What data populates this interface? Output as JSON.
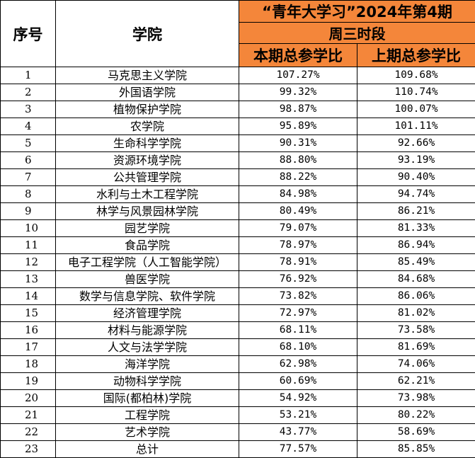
{
  "header": {
    "col_index": "序号",
    "col_college": "学院",
    "period_title": "“青年大学习”2024年第4期",
    "period_sub": "周三时段",
    "col_current": "本期总参学比",
    "col_previous": "上期总参学比"
  },
  "colors": {
    "header_orange": "#F4863A",
    "border": "#000000"
  },
  "rows": [
    {
      "no": "1",
      "college": "马克思主义学院",
      "current": "107.27%",
      "previous": "109.68%"
    },
    {
      "no": "2",
      "college": "外国语学院",
      "current": "99.32%",
      "previous": "110.74%"
    },
    {
      "no": "3",
      "college": "植物保护学院",
      "current": "98.87%",
      "previous": "100.07%"
    },
    {
      "no": "4",
      "college": "农学院",
      "current": "95.89%",
      "previous": "101.11%"
    },
    {
      "no": "5",
      "college": "生命科学学院",
      "current": "90.31%",
      "previous": "92.66%"
    },
    {
      "no": "6",
      "college": "资源环境学院",
      "current": "88.80%",
      "previous": "93.19%"
    },
    {
      "no": "7",
      "college": "公共管理学院",
      "current": "88.22%",
      "previous": "90.40%"
    },
    {
      "no": "8",
      "college": "水利与土木工程学院",
      "current": "84.98%",
      "previous": "94.74%"
    },
    {
      "no": "9",
      "college": "林学与风景园林学院",
      "current": "80.49%",
      "previous": "86.21%"
    },
    {
      "no": "10",
      "college": "园艺学院",
      "current": "79.07%",
      "previous": "81.33%"
    },
    {
      "no": "11",
      "college": "食品学院",
      "current": "78.97%",
      "previous": "86.94%"
    },
    {
      "no": "12",
      "college": "电子工程学院（人工智能学院）",
      "current": "78.91%",
      "previous": "85.49%"
    },
    {
      "no": "13",
      "college": "兽医学院",
      "current": "76.92%",
      "previous": "84.68%"
    },
    {
      "no": "14",
      "college": "数学与信息学院、软件学院",
      "current": "73.82%",
      "previous": "86.06%"
    },
    {
      "no": "15",
      "college": "经济管理学院",
      "current": "72.97%",
      "previous": "81.02%"
    },
    {
      "no": "16",
      "college": "材料与能源学院",
      "current": "68.11%",
      "previous": "73.58%"
    },
    {
      "no": "17",
      "college": "人文与法学学院",
      "current": "68.10%",
      "previous": "81.69%"
    },
    {
      "no": "18",
      "college": "海洋学院",
      "current": "62.98%",
      "previous": "74.06%"
    },
    {
      "no": "19",
      "college": "动物科学学院",
      "current": "60.69%",
      "previous": "62.21%"
    },
    {
      "no": "20",
      "college": "国际(都柏林)学院",
      "current": "54.92%",
      "previous": "73.98%"
    },
    {
      "no": "21",
      "college": "工程学院",
      "current": "53.21%",
      "previous": "80.22%"
    },
    {
      "no": "22",
      "college": "艺术学院",
      "current": "43.77%",
      "previous": "58.69%"
    },
    {
      "no": "23",
      "college": "总计",
      "current": "77.57%",
      "previous": "85.85%"
    }
  ]
}
